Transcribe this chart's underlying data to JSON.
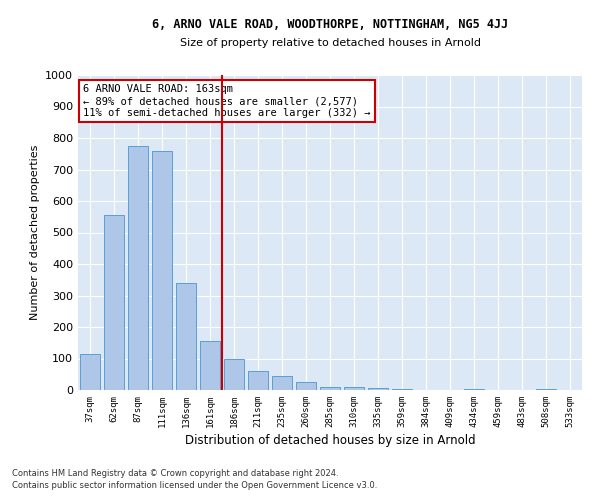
{
  "title1": "6, ARNO VALE ROAD, WOODTHORPE, NOTTINGHAM, NG5 4JJ",
  "title2": "Size of property relative to detached houses in Arnold",
  "xlabel": "Distribution of detached houses by size in Arnold",
  "ylabel": "Number of detached properties",
  "categories": [
    "37sqm",
    "62sqm",
    "87sqm",
    "111sqm",
    "136sqm",
    "161sqm",
    "186sqm",
    "211sqm",
    "235sqm",
    "260sqm",
    "285sqm",
    "310sqm",
    "335sqm",
    "359sqm",
    "384sqm",
    "409sqm",
    "434sqm",
    "459sqm",
    "483sqm",
    "508sqm",
    "533sqm"
  ],
  "values": [
    115,
    555,
    775,
    760,
    340,
    155,
    100,
    60,
    45,
    25,
    10,
    10,
    5,
    2,
    0,
    0,
    2,
    0,
    0,
    2,
    0
  ],
  "bar_color": "#aec6e8",
  "bar_edge_color": "#5a9fd4",
  "vline_x": 5.5,
  "vline_color": "#cc0000",
  "annotation_text": "6 ARNO VALE ROAD: 163sqm\n← 89% of detached houses are smaller (2,577)\n11% of semi-detached houses are larger (332) →",
  "annotation_box_color": "#cc0000",
  "ylim": [
    0,
    1000
  ],
  "yticks": [
    0,
    100,
    200,
    300,
    400,
    500,
    600,
    700,
    800,
    900,
    1000
  ],
  "background_color": "#dce8f5",
  "grid_color": "#ffffff",
  "footer1": "Contains HM Land Registry data © Crown copyright and database right 2024.",
  "footer2": "Contains public sector information licensed under the Open Government Licence v3.0."
}
